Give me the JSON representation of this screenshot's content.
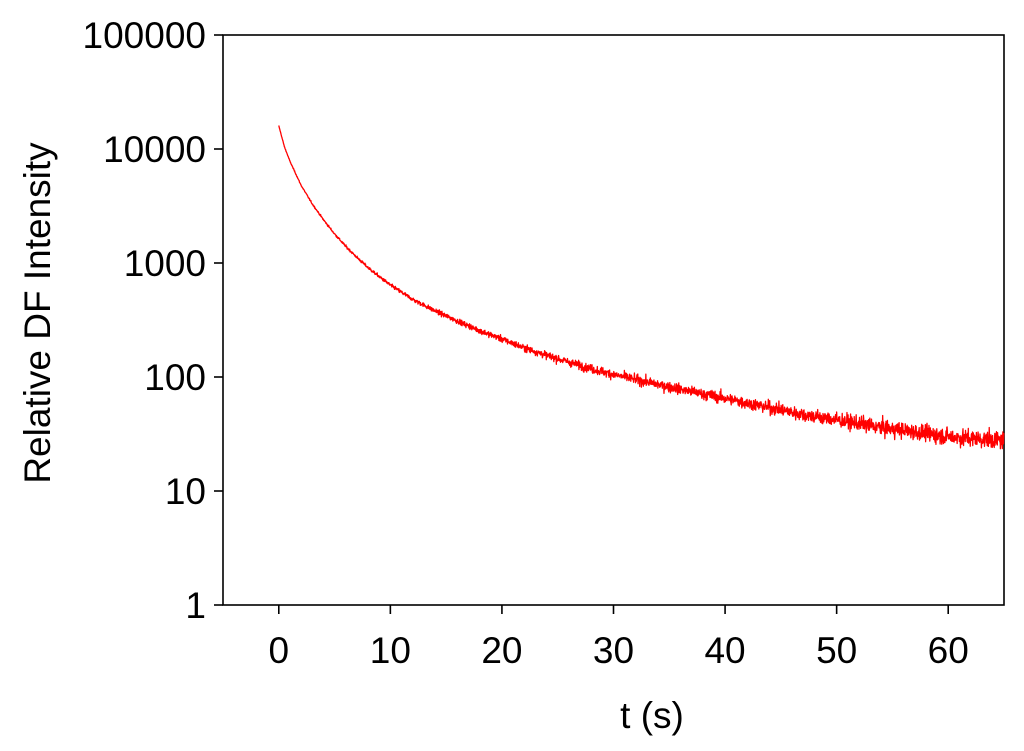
{
  "chart_data": {
    "type": "line",
    "title": "",
    "xlabel": "t (s)",
    "ylabel": "Relative DF Intensity",
    "xlim": [
      -5,
      65
    ],
    "ylim": [
      1,
      100000
    ],
    "yscale": "log",
    "grid": false,
    "legend": "none",
    "x_ticks": [
      0,
      10,
      20,
      30,
      40,
      50,
      60
    ],
    "x_tick_labels": [
      "0",
      "10",
      "20",
      "30",
      "40",
      "50",
      "60"
    ],
    "y_ticks": [
      1,
      10,
      100,
      1000,
      10000,
      100000
    ],
    "y_tick_labels": [
      "1",
      "10",
      "100",
      "1000",
      "10000",
      "100000"
    ],
    "series": [
      {
        "color": "#ff0000",
        "noisy": true,
        "x": [
          0,
          0.5,
          1,
          2,
          3,
          4,
          5,
          6,
          7,
          8,
          9,
          10,
          12,
          14,
          16,
          18,
          20,
          22,
          24,
          26,
          28,
          30,
          32,
          34,
          36,
          38,
          40,
          42,
          44,
          46,
          48,
          50,
          52,
          54,
          56,
          58,
          60,
          62,
          64,
          65
        ],
        "y": [
          16000,
          10500,
          7800,
          4800,
          3300,
          2400,
          1800,
          1400,
          1120,
          910,
          760,
          640,
          480,
          380,
          310,
          255,
          215,
          180,
          155,
          135,
          118,
          105,
          95,
          86,
          78,
          71,
          65,
          59,
          54,
          49,
          45,
          42,
          39,
          36,
          34,
          32,
          30,
          29,
          28,
          28
        ]
      }
    ]
  }
}
